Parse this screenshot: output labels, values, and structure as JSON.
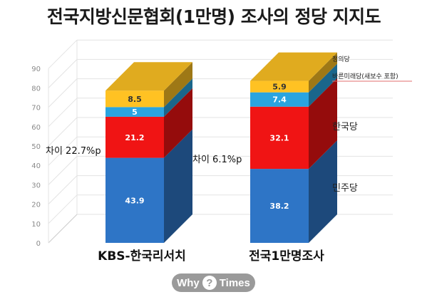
{
  "title": "전국지방신문협회(1만명) 조사의 정당 지지도",
  "chart_data": {
    "type": "bar",
    "stacked": true,
    "three_d": true,
    "title": "전국지방신문협회(1만명) 조사의 정당 지지도",
    "categories": [
      "KBS-한국리서치",
      "전국1만명조사"
    ],
    "ylim": [
      0,
      90
    ],
    "yticks": [
      0,
      10,
      20,
      30,
      40,
      50,
      60,
      70,
      80,
      90
    ],
    "grid": true,
    "series": [
      {
        "name": "민주당",
        "values": [
          43.9,
          38.2
        ],
        "color": "#2e75c6"
      },
      {
        "name": "한국당",
        "values": [
          21.2,
          32.1
        ],
        "color": "#f01414"
      },
      {
        "name": "바른미래당(새보수 포함)",
        "values": [
          5,
          7.4
        ],
        "color": "#2aa4e0"
      },
      {
        "name": "정의당",
        "values": [
          8.5,
          5.9
        ],
        "color": "#ffc223"
      }
    ],
    "annotations": [
      "차이 22.7%p",
      "차이 6.1%p"
    ]
  },
  "watermark": {
    "left": "Why",
    "mark": "?",
    "right": "Times"
  }
}
